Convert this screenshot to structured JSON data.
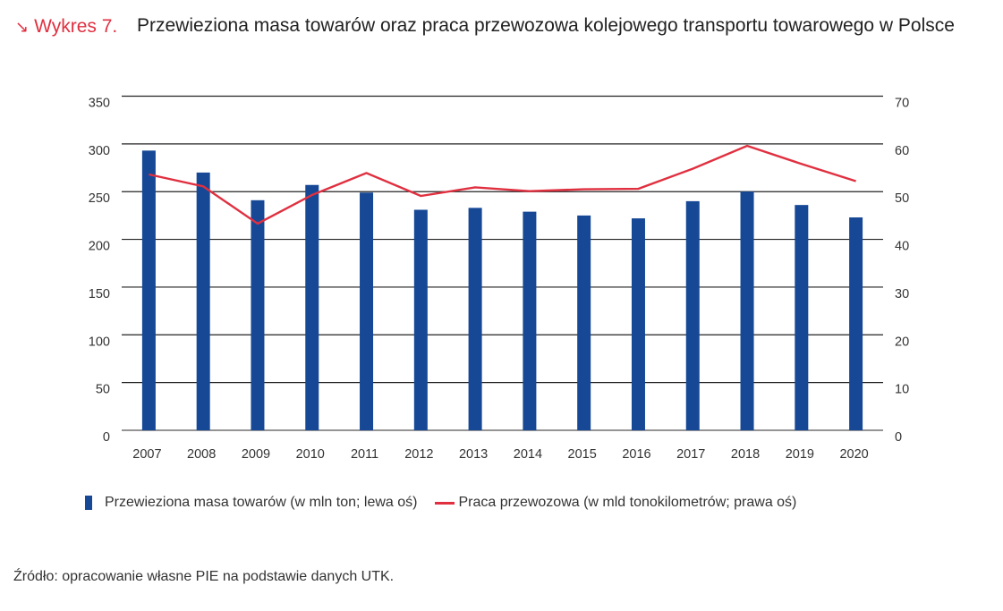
{
  "header": {
    "arrow_icon": "arrow-down-right-icon",
    "label": "Wykres 7.",
    "title": "Przewieziona masa towarów oraz praca przewozowa kolejowego transportu towarowego w Polsce"
  },
  "colors": {
    "bar": "#164896",
    "line": "#e03040",
    "accent": "#e03040",
    "grid": "#222222"
  },
  "chart_data": {
    "type": "bar+line",
    "title": "Przewieziona masa towarów oraz praca przewozowa kolejowego transportu towarowego w Polsce",
    "categories": [
      "2007",
      "2008",
      "2009",
      "2010",
      "2011",
      "2012",
      "2013",
      "2014",
      "2015",
      "2016",
      "2017",
      "2018",
      "2019",
      "2020"
    ],
    "series": [
      {
        "name": "Przewieziona masa towarów (w mln ton; lewa oś)",
        "type": "bar",
        "axis": "left",
        "values": [
          293,
          270,
          241,
          257,
          249,
          231,
          233,
          229,
          225,
          222,
          240,
          250,
          236,
          223
        ]
      },
      {
        "name": "Praca przewozowa (w mld tonokilometrów; prawa oś)",
        "type": "line",
        "axis": "right",
        "values": [
          53.6,
          51.1,
          43.3,
          49.3,
          53.9,
          49.1,
          50.9,
          50.1,
          50.5,
          50.6,
          54.8,
          59.6,
          55.8,
          52.2
        ]
      }
    ],
    "left_axis": {
      "ylim": [
        0,
        350
      ],
      "ticks": [
        "0",
        "50",
        "100",
        "150",
        "200",
        "250",
        "300",
        "350"
      ]
    },
    "right_axis": {
      "ylim": [
        0,
        70
      ],
      "ticks": [
        "0",
        "10",
        "20",
        "30",
        "40",
        "50",
        "60",
        "70"
      ]
    },
    "grid": true,
    "legend_position": "bottom"
  },
  "legend": {
    "bar_label": "Przewieziona masa towarów (w mln ton; lewa oś)",
    "line_label": "Praca przewozowa (w mld tonokilometrów; prawa oś)"
  },
  "source": "Źródło: opracowanie własne PIE na podstawie danych UTK."
}
